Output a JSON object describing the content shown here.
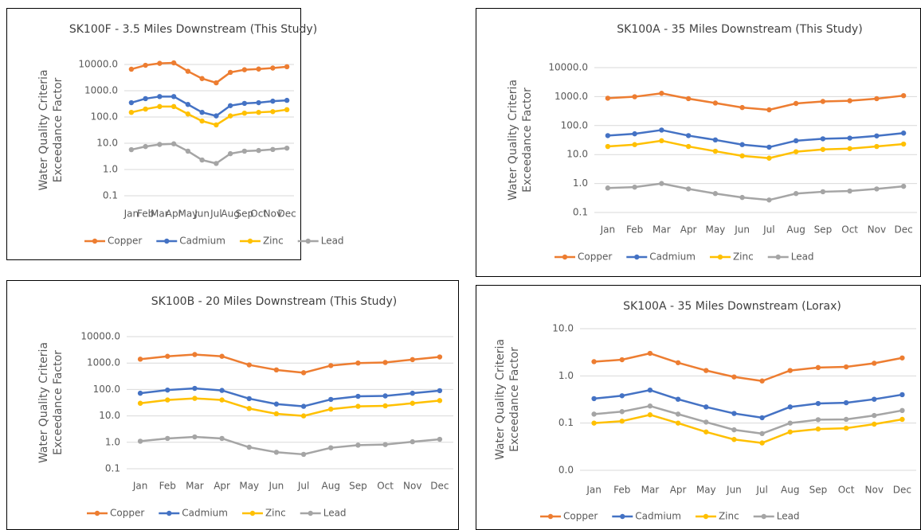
{
  "chart_data": [
    {
      "type": "line",
      "title": "SK100F - 3.5 Miles Downstream (This Study)",
      "ylabel": [
        "Water Quality Criteria",
        "Exceedance Factor"
      ],
      "categories": [
        "Jan",
        "Feb",
        "Mar",
        "Apr",
        "May",
        "Jun",
        "Jul",
        "Aug",
        "Sep",
        "Oct",
        "Nov",
        "Dec"
      ],
      "yscale": "log",
      "grid": true,
      "legend": "bottom",
      "ylim": [
        0.1,
        10000
      ],
      "yticks": [
        0.1,
        {
          "value": 1,
          "label": "1.0"
        },
        {
          "value": 10,
          "label": "10.0"
        },
        {
          "value": 100,
          "label": "100.0"
        },
        {
          "value": 1000,
          "label": "1000.0"
        },
        {
          "value": 10000,
          "label": "10000.0"
        }
      ],
      "series": [
        {
          "name": "Copper",
          "color": "#ed7d31",
          "values": [
            6600,
            9300,
            11000,
            11500,
            5500,
            2900,
            2000,
            5000,
            6300,
            6700,
            7300,
            8200
          ]
        },
        {
          "name": "Cadmium",
          "color": "#4472c4",
          "values": [
            350,
            500,
            600,
            600,
            300,
            150,
            110,
            270,
            330,
            350,
            400,
            430
          ]
        },
        {
          "name": "Zinc",
          "color": "#ffc000",
          "values": [
            150,
            200,
            250,
            250,
            130,
            70,
            50,
            110,
            140,
            150,
            160,
            190
          ]
        },
        {
          "name": "Lead",
          "color": "#a5a5a5",
          "values": [
            5.7,
            7.5,
            9,
            9.5,
            5,
            2.3,
            1.7,
            4,
            5,
            5.3,
            5.8,
            6.5
          ]
        }
      ]
    },
    {
      "type": "line",
      "title": "SK100A - 35 Miles Downstream (This Study)",
      "ylabel": [
        "Water Quality Criteria",
        "Exceedance Factor"
      ],
      "categories": [
        "Jan",
        "Feb",
        "Mar",
        "Apr",
        "May",
        "Jun",
        "Jul",
        "Aug",
        "Sep",
        "Oct",
        "Nov",
        "Dec"
      ],
      "yscale": "log",
      "grid": true,
      "legend": "bottom",
      "ylim": [
        0.1,
        10000
      ],
      "yticks": [
        0.1,
        {
          "value": 1,
          "label": "1.0"
        },
        {
          "value": 10,
          "label": "10.0"
        },
        {
          "value": 100,
          "label": "100.0"
        },
        {
          "value": 1000,
          "label": "1000.0"
        },
        {
          "value": 10000,
          "label": "10000.0"
        }
      ],
      "series": [
        {
          "name": "Copper",
          "color": "#ed7d31",
          "values": [
            880,
            990,
            1300,
            850,
            600,
            420,
            350,
            580,
            680,
            720,
            850,
            1080
          ]
        },
        {
          "name": "Cadmium",
          "color": "#4472c4",
          "values": [
            45,
            52,
            70,
            45,
            32,
            22,
            18,
            30,
            35,
            37,
            44,
            55
          ]
        },
        {
          "name": "Zinc",
          "color": "#ffc000",
          "values": [
            19,
            22,
            30,
            19,
            13,
            9,
            7.5,
            12.5,
            15,
            16,
            19,
            23
          ]
        },
        {
          "name": "Lead",
          "color": "#a5a5a5",
          "values": [
            0.7,
            0.75,
            1.0,
            0.65,
            0.45,
            0.33,
            0.27,
            0.45,
            0.52,
            0.55,
            0.65,
            0.8
          ]
        }
      ]
    },
    {
      "type": "line",
      "title": "SK100B - 20 Miles Downstream (This Study)",
      "ylabel": [
        "Water Quality Criteria",
        "Exceedance Factor"
      ],
      "categories": [
        "Jan",
        "Feb",
        "Mar",
        "Apr",
        "May",
        "Jun",
        "Jul",
        "Aug",
        "Sep",
        "Oct",
        "Nov",
        "Dec"
      ],
      "yscale": "log",
      "grid": true,
      "legend": "bottom",
      "ylim": [
        0.1,
        10000
      ],
      "yticks": [
        0.1,
        {
          "value": 1,
          "label": "1.0"
        },
        {
          "value": 10,
          "label": "10.0"
        },
        {
          "value": 100,
          "label": "100.0"
        },
        {
          "value": 1000,
          "label": "1000.0"
        },
        {
          "value": 10000,
          "label": "10000.0"
        }
      ],
      "series": [
        {
          "name": "Copper",
          "color": "#ed7d31",
          "values": [
            1400,
            1800,
            2100,
            1800,
            850,
            550,
            430,
            800,
            1000,
            1050,
            1350,
            1700
          ]
        },
        {
          "name": "Cadmium",
          "color": "#4472c4",
          "values": [
            72,
            95,
            110,
            92,
            45,
            28,
            23,
            42,
            55,
            57,
            72,
            90
          ]
        },
        {
          "name": "Zinc",
          "color": "#ffc000",
          "values": [
            30,
            40,
            46,
            40,
            19,
            12,
            10,
            18,
            23,
            24,
            30,
            38
          ]
        },
        {
          "name": "Lead",
          "color": "#a5a5a5",
          "values": [
            1.1,
            1.4,
            1.6,
            1.4,
            0.65,
            0.42,
            0.35,
            0.62,
            0.78,
            0.82,
            1.05,
            1.3
          ]
        }
      ]
    },
    {
      "type": "line",
      "title": "SK100A - 35 Miles Downstream (Lorax)",
      "ylabel": [
        "Water Quality Criteria",
        "Exceedance Factor"
      ],
      "categories": [
        "Jan",
        "Feb",
        "Mar",
        "Apr",
        "May",
        "Jun",
        "Jul",
        "Aug",
        "Sep",
        "Oct",
        "Nov",
        "Dec"
      ],
      "yscale": "log",
      "grid": true,
      "legend": "bottom",
      "ylim": [
        0.01,
        10
      ],
      "yticks": [
        {
          "value": 0.01,
          "label": "0.0"
        },
        0.1,
        {
          "value": 1,
          "label": "1.0"
        },
        {
          "value": 10,
          "label": "10.0"
        }
      ],
      "series": [
        {
          "name": "Copper",
          "color": "#ed7d31",
          "values": [
            2.0,
            2.2,
            3.0,
            1.9,
            1.3,
            0.95,
            0.78,
            1.3,
            1.5,
            1.55,
            1.85,
            2.4
          ]
        },
        {
          "name": "Cadmium",
          "color": "#4472c4",
          "values": [
            0.33,
            0.38,
            0.5,
            0.32,
            0.22,
            0.16,
            0.13,
            0.22,
            0.26,
            0.27,
            0.32,
            0.4
          ]
        },
        {
          "name": "Zinc",
          "color": "#ffc000",
          "values": [
            0.1,
            0.11,
            0.15,
            0.1,
            0.065,
            0.045,
            0.038,
            0.065,
            0.075,
            0.078,
            0.095,
            0.12
          ]
        },
        {
          "name": "Lead",
          "color": "#a5a5a5",
          "values": [
            0.155,
            0.175,
            0.23,
            0.155,
            0.105,
            0.072,
            0.06,
            0.1,
            0.118,
            0.12,
            0.145,
            0.185
          ]
        }
      ]
    }
  ]
}
